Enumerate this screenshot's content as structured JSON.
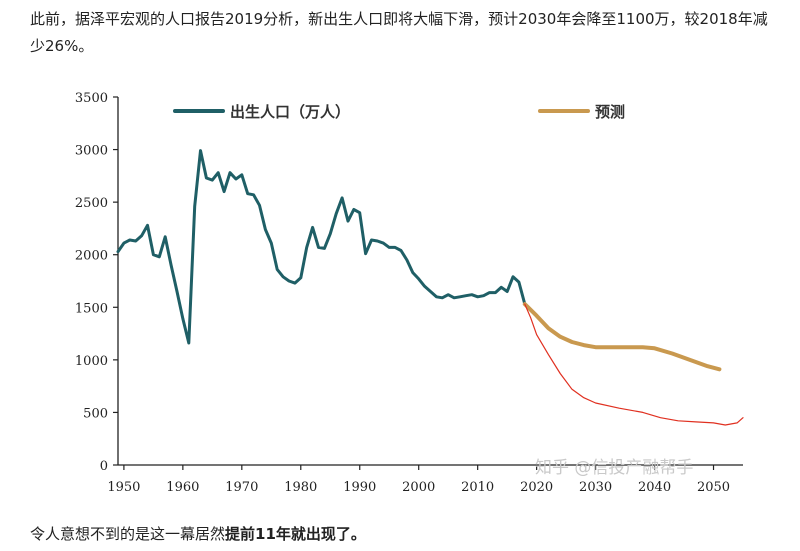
{
  "article": {
    "intro": "此前，据泽平宏观的人口报告2019分析，新出生人口即将大幅下滑，预计2030年会降至1100万，较2018年减少26%。",
    "outro_plain": "令人意想不到的是这一幕居然",
    "outro_bold": "提前11年就出现了。"
  },
  "watermark": "知乎 @信投产融帮手",
  "colors": {
    "births": "#1f5f66",
    "forecast": "#c9994f",
    "actual_decline": "#e03020",
    "axis": "#222222"
  },
  "chart_data": {
    "type": "line",
    "x_ticks": [
      1950,
      1960,
      1970,
      1980,
      1990,
      2000,
      2010,
      2020,
      2030,
      2040,
      2050
    ],
    "y_ticks": [
      0,
      500,
      1000,
      1500,
      2000,
      2500,
      3000,
      3500
    ],
    "xlim": [
      1949,
      2055
    ],
    "ylim": [
      0,
      3500
    ],
    "grid": false,
    "legend_position": "top",
    "series": [
      {
        "name": "出生人口（万人）",
        "color": "#1f5f66",
        "points": [
          [
            1949,
            2030
          ],
          [
            1950,
            2110
          ],
          [
            1951,
            2140
          ],
          [
            1952,
            2130
          ],
          [
            1953,
            2180
          ],
          [
            1954,
            2280
          ],
          [
            1955,
            2000
          ],
          [
            1956,
            1980
          ],
          [
            1957,
            2170
          ],
          [
            1958,
            1900
          ],
          [
            1959,
            1650
          ],
          [
            1960,
            1390
          ],
          [
            1961,
            1160
          ],
          [
            1962,
            2460
          ],
          [
            1963,
            2990
          ],
          [
            1964,
            2730
          ],
          [
            1965,
            2710
          ],
          [
            1966,
            2780
          ],
          [
            1967,
            2600
          ],
          [
            1968,
            2780
          ],
          [
            1969,
            2720
          ],
          [
            1970,
            2760
          ],
          [
            1971,
            2580
          ],
          [
            1972,
            2570
          ],
          [
            1973,
            2470
          ],
          [
            1974,
            2240
          ],
          [
            1975,
            2110
          ],
          [
            1976,
            1860
          ],
          [
            1977,
            1790
          ],
          [
            1978,
            1750
          ],
          [
            1979,
            1730
          ],
          [
            1980,
            1780
          ],
          [
            1981,
            2070
          ],
          [
            1982,
            2260
          ],
          [
            1983,
            2070
          ],
          [
            1984,
            2060
          ],
          [
            1985,
            2200
          ],
          [
            1986,
            2390
          ],
          [
            1987,
            2540
          ],
          [
            1988,
            2320
          ],
          [
            1989,
            2430
          ],
          [
            1990,
            2400
          ],
          [
            1991,
            2010
          ],
          [
            1992,
            2140
          ],
          [
            1993,
            2130
          ],
          [
            1994,
            2110
          ],
          [
            1995,
            2070
          ],
          [
            1996,
            2070
          ],
          [
            1997,
            2040
          ],
          [
            1998,
            1950
          ],
          [
            1999,
            1830
          ],
          [
            2000,
            1770
          ],
          [
            2001,
            1700
          ],
          [
            2002,
            1650
          ],
          [
            2003,
            1600
          ],
          [
            2004,
            1590
          ],
          [
            2005,
            1620
          ],
          [
            2006,
            1590
          ],
          [
            2007,
            1600
          ],
          [
            2008,
            1610
          ],
          [
            2009,
            1620
          ],
          [
            2010,
            1600
          ],
          [
            2011,
            1610
          ],
          [
            2012,
            1640
          ],
          [
            2013,
            1640
          ],
          [
            2014,
            1690
          ],
          [
            2015,
            1650
          ],
          [
            2016,
            1790
          ],
          [
            2017,
            1740
          ],
          [
            2018,
            1530
          ]
        ]
      },
      {
        "name": "预测",
        "color": "#c9994f",
        "points": [
          [
            2018,
            1530
          ],
          [
            2020,
            1420
          ],
          [
            2022,
            1300
          ],
          [
            2024,
            1220
          ],
          [
            2026,
            1170
          ],
          [
            2028,
            1140
          ],
          [
            2030,
            1120
          ],
          [
            2034,
            1120
          ],
          [
            2038,
            1120
          ],
          [
            2040,
            1110
          ],
          [
            2043,
            1060
          ],
          [
            2046,
            1000
          ],
          [
            2049,
            940
          ],
          [
            2051,
            910
          ]
        ]
      },
      {
        "name": "",
        "color": "#e03020",
        "points": [
          [
            2018,
            1530
          ],
          [
            2019,
            1400
          ],
          [
            2020,
            1240
          ],
          [
            2022,
            1050
          ],
          [
            2024,
            870
          ],
          [
            2026,
            720
          ],
          [
            2028,
            640
          ],
          [
            2030,
            590
          ],
          [
            2034,
            540
          ],
          [
            2038,
            500
          ],
          [
            2041,
            450
          ],
          [
            2044,
            420
          ],
          [
            2047,
            410
          ],
          [
            2050,
            400
          ],
          [
            2052,
            380
          ],
          [
            2054,
            400
          ],
          [
            2055,
            450
          ]
        ]
      }
    ]
  }
}
